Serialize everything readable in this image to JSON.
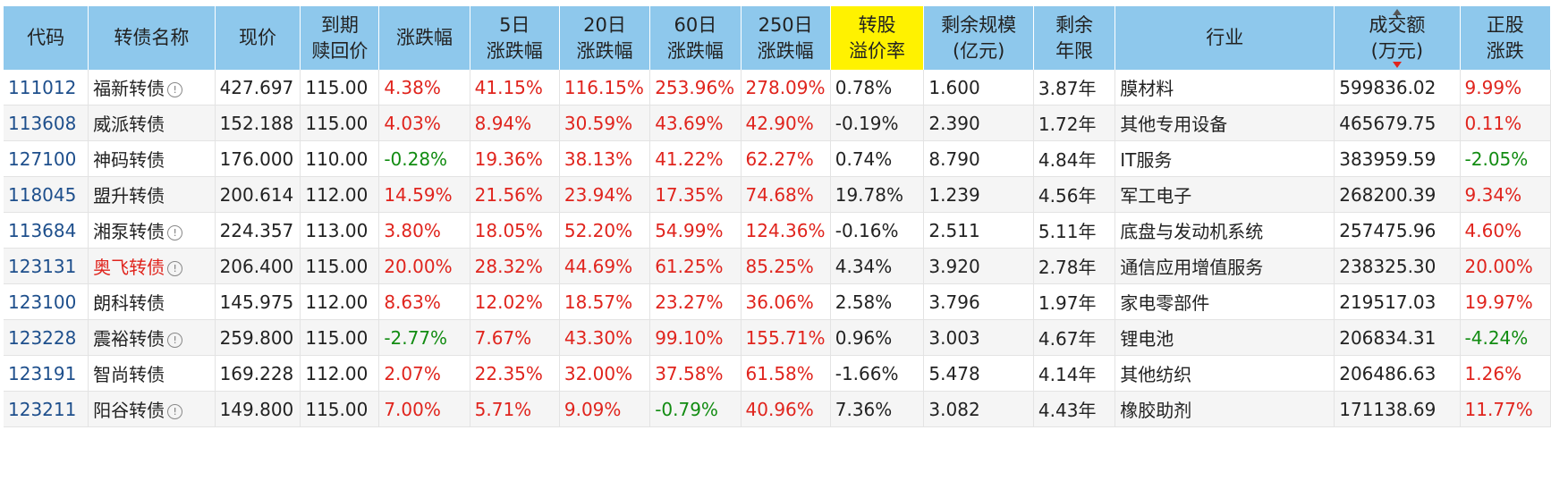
{
  "colors": {
    "header_bg": "#8ec8ec",
    "highlight_header": "#fff200",
    "up": "#e0241d",
    "down": "#128c12",
    "code": "#1e4f8c"
  },
  "columns": [
    {
      "key": "code",
      "label": "代码"
    },
    {
      "key": "name",
      "label": "转债名称"
    },
    {
      "key": "price",
      "label": "现价"
    },
    {
      "key": "redeem",
      "label": "到期\n赎回价"
    },
    {
      "key": "chg",
      "label": "涨跌幅"
    },
    {
      "key": "chg5",
      "label": "5日\n涨跌幅"
    },
    {
      "key": "chg20",
      "label": "20日\n涨跌幅"
    },
    {
      "key": "chg60",
      "label": "60日\n涨跌幅"
    },
    {
      "key": "chg250",
      "label": "250日\n涨跌幅"
    },
    {
      "key": "premium",
      "label": "转股\n溢价率",
      "highlight": true
    },
    {
      "key": "scale",
      "label": "剩余规模\n(亿元)"
    },
    {
      "key": "years",
      "label": "剩余\n年限"
    },
    {
      "key": "industry",
      "label": "行业"
    },
    {
      "key": "amount",
      "label": "成交额\n(万元)",
      "sorted": "desc"
    },
    {
      "key": "stock_chg",
      "label": "正股\n涨跌"
    }
  ],
  "rows": [
    {
      "code": "111012",
      "name": "福新转债",
      "info": true,
      "price": "427.697",
      "redeem": "115.00",
      "chg": "4.38%",
      "chg5": "41.15%",
      "chg20": "116.15%",
      "chg60": "253.96%",
      "chg250": "278.09%",
      "premium": "0.78%",
      "scale": "1.600",
      "years": "3.87年",
      "industry": "膜材料",
      "amount": "599836.02",
      "stock_chg": "9.99%"
    },
    {
      "code": "113608",
      "name": "威派转债",
      "price": "152.188",
      "redeem": "115.00",
      "chg": "4.03%",
      "chg5": "8.94%",
      "chg20": "30.59%",
      "chg60": "43.69%",
      "chg250": "42.90%",
      "premium": "-0.19%",
      "scale": "2.390",
      "years": "1.72年",
      "industry": "其他专用设备",
      "amount": "465679.75",
      "stock_chg": "0.11%"
    },
    {
      "code": "127100",
      "name": "神码转债",
      "price": "176.000",
      "redeem": "110.00",
      "chg": "-0.28%",
      "chg5": "19.36%",
      "chg20": "38.13%",
      "chg60": "41.22%",
      "chg250": "62.27%",
      "premium": "0.74%",
      "scale": "8.790",
      "years": "4.84年",
      "industry": "IT服务",
      "amount": "383959.59",
      "stock_chg": "-2.05%"
    },
    {
      "code": "118045",
      "name": "盟升转债",
      "price": "200.614",
      "redeem": "112.00",
      "chg": "14.59%",
      "chg5": "21.56%",
      "chg20": "23.94%",
      "chg60": "17.35%",
      "chg250": "74.68%",
      "premium": "19.78%",
      "scale": "1.239",
      "years": "4.56年",
      "industry": "军工电子",
      "amount": "268200.39",
      "stock_chg": "9.34%"
    },
    {
      "code": "113684",
      "name": "湘泵转债",
      "info": true,
      "price": "224.357",
      "redeem": "113.00",
      "chg": "3.80%",
      "chg5": "18.05%",
      "chg20": "52.20%",
      "chg60": "54.99%",
      "chg250": "124.36%",
      "premium": "-0.16%",
      "scale": "2.511",
      "years": "5.11年",
      "industry": "底盘与发动机系统",
      "amount": "257475.96",
      "stock_chg": "4.60%"
    },
    {
      "code": "123131",
      "name": "奥飞转债",
      "info": true,
      "name_red": true,
      "price": "206.400",
      "redeem": "115.00",
      "chg": "20.00%",
      "chg5": "28.32%",
      "chg20": "44.69%",
      "chg60": "61.25%",
      "chg250": "85.25%",
      "premium": "4.34%",
      "scale": "3.920",
      "years": "2.78年",
      "industry": "通信应用增值服务",
      "amount": "238325.30",
      "stock_chg": "20.00%"
    },
    {
      "code": "123100",
      "name": "朗科转债",
      "price": "145.975",
      "redeem": "112.00",
      "chg": "8.63%",
      "chg5": "12.02%",
      "chg20": "18.57%",
      "chg60": "23.27%",
      "chg250": "36.06%",
      "premium": "2.58%",
      "scale": "3.796",
      "years": "1.97年",
      "industry": "家电零部件",
      "amount": "219517.03",
      "stock_chg": "19.97%"
    },
    {
      "code": "123228",
      "name": "震裕转债",
      "info": true,
      "price": "259.800",
      "redeem": "115.00",
      "chg": "-2.77%",
      "chg5": "7.67%",
      "chg20": "43.30%",
      "chg60": "99.10%",
      "chg250": "155.71%",
      "premium": "0.96%",
      "scale": "3.003",
      "years": "4.67年",
      "industry": "锂电池",
      "amount": "206834.31",
      "stock_chg": "-4.24%"
    },
    {
      "code": "123191",
      "name": "智尚转债",
      "price": "169.228",
      "redeem": "112.00",
      "chg": "2.07%",
      "chg5": "22.35%",
      "chg20": "32.00%",
      "chg60": "37.58%",
      "chg250": "61.58%",
      "premium": "-1.66%",
      "scale": "5.478",
      "years": "4.14年",
      "industry": "其他纺织",
      "amount": "206486.63",
      "stock_chg": "1.26%"
    },
    {
      "code": "123211",
      "name": "阳谷转债",
      "info": true,
      "price": "149.800",
      "redeem": "115.00",
      "chg": "7.00%",
      "chg5": "5.71%",
      "chg20": "9.09%",
      "chg60": "-0.79%",
      "chg250": "40.96%",
      "premium": "7.36%",
      "scale": "3.082",
      "years": "4.43年",
      "industry": "橡胶助剂",
      "amount": "171138.69",
      "stock_chg": "11.77%"
    }
  ]
}
